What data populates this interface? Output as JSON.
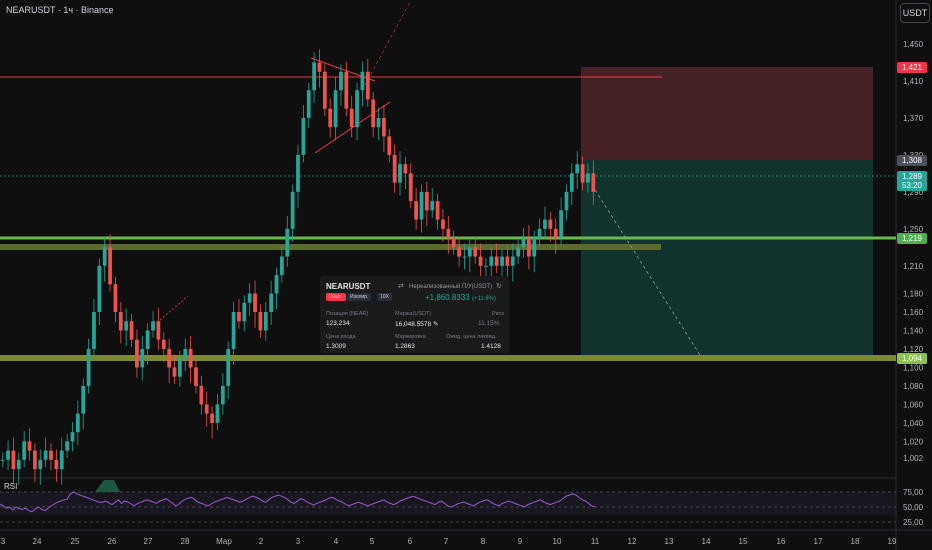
{
  "header": {
    "title": "NEARUSDT · 1ч · Binance",
    "currency_button": "USDT"
  },
  "rsi": {
    "label": "RSI",
    "axis_ticks": [
      "75,00",
      "50,00",
      "25,00"
    ],
    "levels": [
      75,
      50,
      25
    ],
    "range": [
      25,
      75
    ],
    "values": [
      55,
      52,
      48,
      50,
      45,
      50,
      47,
      46,
      48,
      44,
      42,
      47,
      50,
      46,
      44,
      48,
      52,
      55,
      58,
      60,
      62,
      63,
      72,
      75,
      72,
      70,
      68,
      66,
      64,
      62,
      60,
      58,
      58,
      60,
      57,
      54,
      58,
      62,
      56,
      60,
      58,
      55,
      52,
      56,
      58,
      60,
      62,
      60,
      58,
      56,
      60,
      62,
      64,
      60,
      56,
      52,
      55,
      60,
      63,
      65,
      66,
      62,
      58,
      56,
      54,
      52,
      55,
      58,
      60,
      62,
      64,
      66,
      64,
      62,
      60,
      58,
      60,
      63,
      66,
      68,
      66,
      64,
      60,
      58,
      62,
      66,
      68,
      70,
      68,
      66,
      62,
      58,
      56,
      60,
      64,
      62,
      58,
      56,
      53,
      56,
      58,
      60,
      62,
      65,
      66,
      63,
      60,
      58,
      55,
      52,
      54,
      56,
      58,
      56,
      54,
      52,
      54,
      56,
      58,
      60,
      62,
      58,
      56,
      54,
      56,
      60,
      62,
      64,
      66,
      68,
      66,
      64,
      62,
      60,
      58,
      56,
      54,
      58,
      60,
      56,
      52,
      50,
      52,
      55,
      57,
      58,
      56,
      54,
      52,
      55,
      58,
      60,
      62,
      60,
      56,
      54,
      52,
      56,
      58,
      60,
      58,
      56,
      54,
      52,
      50,
      54,
      56,
      58,
      60,
      62,
      58,
      56,
      54,
      56,
      58,
      60,
      64,
      68,
      70,
      72,
      70,
      66,
      62,
      60,
      56,
      52,
      50
    ]
  },
  "chart_data": {
    "type": "candlestick",
    "title": "NEARUSDT · 1ч · Binance",
    "symbol": "NEARUSDT",
    "interval": "1ч",
    "exchange": "Binance",
    "y_axis": {
      "unit": "USDT",
      "ticks": [
        "1,450",
        "1,410",
        "1,370",
        "1,330",
        "1,290",
        "1,250",
        "1,210",
        "1,180",
        "1,160",
        "1,140",
        "1,120",
        "1,100",
        "1,080",
        "1,060",
        "1,040",
        "1,020",
        "1,002"
      ],
      "tick_values": [
        1.45,
        1.41,
        1.37,
        1.33,
        1.29,
        1.25,
        1.21,
        1.18,
        1.16,
        1.14,
        1.12,
        1.1,
        1.08,
        1.06,
        1.04,
        1.02,
        1.002
      ]
    },
    "x_axis": {
      "ticks": [
        "3",
        "24",
        "25",
        "26",
        "27",
        "28",
        "Мар",
        "2",
        "3",
        "4",
        "5",
        "6",
        "7",
        "8",
        "9",
        "10",
        "11",
        "12",
        "13",
        "14",
        "15",
        "16",
        "17",
        "18",
        "19"
      ]
    },
    "price_labels": [
      {
        "text": "1,421",
        "color": "#f23645"
      },
      {
        "text": "1,308",
        "color": "#4b4f58"
      },
      {
        "text": "1,289",
        "sub": "53:20",
        "color": "#26a69a"
      },
      {
        "text": "1,219",
        "color": "#4caf50"
      },
      {
        "text": "1,094",
        "color": "#8bc34a"
      }
    ],
    "close_series": [
      1.0,
      1.01,
      0.99,
      1.0,
      1.02,
      1.01,
      0.99,
      1.0,
      1.01,
      1.0,
      0.99,
      1.01,
      1.02,
      1.03,
      1.05,
      1.08,
      1.12,
      1.16,
      1.21,
      1.23,
      1.19,
      1.16,
      1.14,
      1.15,
      1.13,
      1.1,
      1.12,
      1.14,
      1.15,
      1.13,
      1.12,
      1.1,
      1.09,
      1.11,
      1.12,
      1.1,
      1.08,
      1.06,
      1.05,
      1.04,
      1.06,
      1.08,
      1.12,
      1.16,
      1.15,
      1.17,
      1.18,
      1.16,
      1.14,
      1.16,
      1.18,
      1.2,
      1.22,
      1.25,
      1.29,
      1.33,
      1.37,
      1.4,
      1.43,
      1.42,
      1.38,
      1.36,
      1.4,
      1.42,
      1.38,
      1.36,
      1.4,
      1.42,
      1.39,
      1.36,
      1.37,
      1.35,
      1.33,
      1.3,
      1.32,
      1.31,
      1.28,
      1.26,
      1.29,
      1.27,
      1.28,
      1.26,
      1.25,
      1.24,
      1.23,
      1.22,
      1.22,
      1.23,
      1.22,
      1.21,
      1.21,
      1.22,
      1.21,
      1.22,
      1.21,
      1.22,
      1.23,
      1.24,
      1.22,
      1.24,
      1.25,
      1.26,
      1.25,
      1.24,
      1.27,
      1.29,
      1.31,
      1.32,
      1.3,
      1.31,
      1.29
    ],
    "trade": {
      "entry": 1.3009,
      "stop": 1.421,
      "target": 1.094
    },
    "position_card": {
      "symbol": "NEARUSDT",
      "pnl_label": "Нереализованный П/У(USDT)",
      "side": "Шорт",
      "mode": "Изолир.",
      "leverage": "10X",
      "pnl": "+1,860.8333",
      "pnl_pct": "(+11.6%)",
      "fields": [
        {
          "label": "Позиция (NEAR)",
          "value": "123,234"
        },
        {
          "label": "Маржа(USDT)",
          "value": "16,048.5578"
        },
        {
          "label": "Риск",
          "value": "11.15%"
        },
        {
          "label": "Цена входа",
          "value": "1.3009"
        },
        {
          "label": "Маркировка",
          "value": "1.2863"
        },
        {
          "label": "Ожид. цена ликвид.",
          "value": "1.4128"
        }
      ]
    },
    "colors": {
      "up": "#26a69a",
      "down": "#ef5350",
      "stop_zone": "#5d2a2e",
      "target_zone": "#173a36",
      "resistance_line": "#f23645",
      "support_band_upper": "#6b8f32",
      "support_band_lower": "#7a8a2a",
      "green_line": "#4caf50",
      "rsi_line": "#9c5bd0"
    }
  }
}
